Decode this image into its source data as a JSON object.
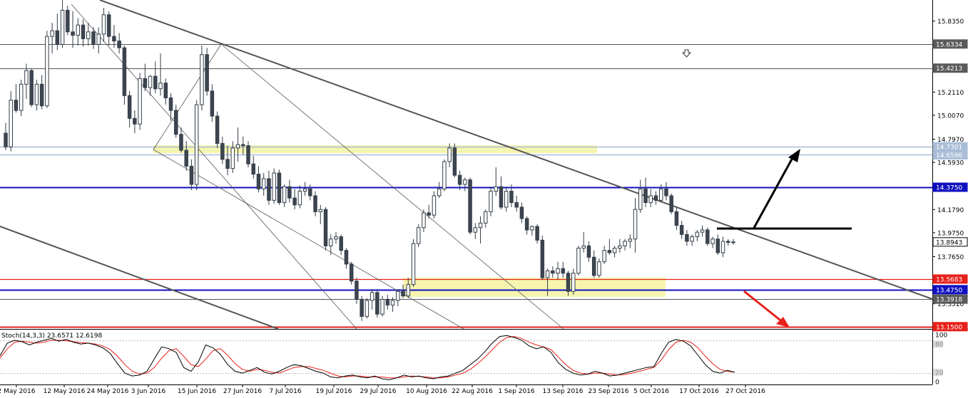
{
  "chart_data": {
    "type": "candlestick",
    "title": "",
    "main_axis": {
      "ticks": [
        "15.8350",
        "15.2110",
        "15.0070",
        "14.7970",
        "14.5930",
        "14.1790",
        "13.9750",
        "13.7650",
        "13.3510"
      ],
      "range": [
        13.13,
        16.02
      ]
    },
    "price_labels": [
      {
        "text": "15.6334",
        "value": 15.6334,
        "style": "gray"
      },
      {
        "text": "15.4213",
        "value": 15.4213,
        "style": "gray"
      },
      {
        "text": "14.7301",
        "value": 14.7301,
        "style": "lightblue"
      },
      {
        "text": "14.6596",
        "value": 14.6596,
        "style": "lightblue"
      },
      {
        "text": "14.3750",
        "value": 14.375,
        "style": "blue"
      },
      {
        "text": "13.8943",
        "value": 13.8943,
        "style": "current"
      },
      {
        "text": "13.5683",
        "value": 13.5683,
        "style": "red"
      },
      {
        "text": "13.4750",
        "value": 13.475,
        "style": "blue"
      },
      {
        "text": "13.3918",
        "value": 13.3918,
        "style": "gray"
      },
      {
        "text": "13.1500",
        "value": 13.15,
        "style": "red"
      }
    ],
    "x_axis": {
      "labels": [
        "2 May 2016",
        "12 May 2016",
        "24 May 2016",
        "3 Jun 2016",
        "15 Jun 2016",
        "27 Jun 2016",
        "7 Jul 2016",
        "19 Jul 2016",
        "29 Jul 2016",
        "10 Aug 2016",
        "22 Aug 2016",
        "1 Sep 2016",
        "13 Sep 2016",
        "23 Sep 2016",
        "5 Oct 2016",
        "17 Oct 2016",
        "27 Oct 2016"
      ]
    },
    "candles": [
      [
        14.85,
        14.94,
        14.7,
        14.73
      ],
      [
        14.73,
        15.22,
        14.69,
        15.14
      ],
      [
        15.14,
        15.28,
        15.03,
        15.05
      ],
      [
        15.05,
        15.32,
        15.0,
        15.28
      ],
      [
        15.28,
        15.46,
        15.15,
        15.4
      ],
      [
        15.4,
        15.42,
        15.08,
        15.1
      ],
      [
        15.1,
        15.32,
        15.05,
        15.28
      ],
      [
        15.28,
        15.36,
        15.06,
        15.09
      ],
      [
        15.09,
        15.75,
        15.07,
        15.7
      ],
      [
        15.7,
        15.82,
        15.55,
        15.75
      ],
      [
        15.75,
        15.9,
        15.58,
        15.63
      ],
      [
        15.63,
        16.02,
        15.6,
        15.93
      ],
      [
        15.93,
        15.97,
        15.71,
        15.74
      ],
      [
        15.74,
        15.92,
        15.6,
        15.71
      ],
      [
        15.71,
        15.86,
        15.62,
        15.8
      ],
      [
        15.8,
        15.85,
        15.61,
        15.68
      ],
      [
        15.68,
        15.82,
        15.62,
        15.74
      ],
      [
        15.74,
        15.78,
        15.59,
        15.63
      ],
      [
        15.63,
        15.78,
        15.55,
        15.72
      ],
      [
        15.72,
        15.95,
        15.65,
        15.89
      ],
      [
        15.89,
        15.92,
        15.62,
        15.7
      ],
      [
        15.7,
        15.8,
        15.6,
        15.66
      ],
      [
        15.66,
        15.73,
        15.55,
        15.6
      ],
      [
        15.6,
        15.62,
        15.1,
        15.18
      ],
      [
        15.18,
        15.22,
        14.9,
        14.98
      ],
      [
        14.98,
        15.05,
        14.85,
        14.93
      ],
      [
        14.93,
        15.38,
        14.88,
        15.33
      ],
      [
        15.33,
        15.46,
        15.22,
        15.25
      ],
      [
        15.25,
        15.36,
        15.18,
        15.35
      ],
      [
        15.35,
        15.48,
        15.2,
        15.24
      ],
      [
        15.24,
        15.55,
        15.18,
        15.29
      ],
      [
        15.29,
        15.33,
        15.1,
        15.16
      ],
      [
        15.16,
        15.2,
        14.96,
        15.05
      ],
      [
        15.05,
        15.1,
        14.81,
        14.84
      ],
      [
        14.84,
        14.9,
        14.68,
        14.7
      ],
      [
        14.7,
        14.78,
        14.52,
        14.56
      ],
      [
        14.56,
        14.62,
        14.35,
        14.4
      ],
      [
        14.4,
        15.14,
        14.35,
        15.1
      ],
      [
        15.1,
        15.62,
        15.05,
        15.54
      ],
      [
        15.54,
        15.6,
        15.18,
        15.22
      ],
      [
        15.22,
        15.28,
        14.95,
        15.0
      ],
      [
        15.0,
        15.04,
        14.72,
        14.76
      ],
      [
        14.76,
        14.82,
        14.58,
        14.62
      ],
      [
        14.62,
        14.74,
        14.48,
        14.54
      ],
      [
        14.54,
        14.78,
        14.5,
        14.72
      ],
      [
        14.72,
        14.9,
        14.6,
        14.75
      ],
      [
        14.75,
        14.82,
        14.66,
        14.74
      ],
      [
        14.74,
        14.78,
        14.55,
        14.58
      ],
      [
        14.58,
        14.65,
        14.45,
        14.49
      ],
      [
        14.49,
        14.56,
        14.33,
        14.36
      ],
      [
        14.36,
        14.5,
        14.3,
        14.45
      ],
      [
        14.45,
        14.52,
        14.22,
        14.26
      ],
      [
        14.26,
        14.54,
        14.23,
        14.5
      ],
      [
        14.5,
        14.53,
        14.22,
        14.24
      ],
      [
        14.24,
        14.4,
        14.2,
        14.38
      ],
      [
        14.38,
        14.44,
        14.24,
        14.28
      ],
      [
        14.28,
        14.36,
        14.18,
        14.22
      ],
      [
        14.22,
        14.39,
        14.19,
        14.34
      ],
      [
        14.34,
        14.42,
        14.3,
        14.36
      ],
      [
        14.36,
        14.4,
        14.26,
        14.3
      ],
      [
        14.3,
        14.34,
        14.12,
        14.16
      ],
      [
        14.16,
        14.22,
        14.05,
        14.18
      ],
      [
        14.18,
        14.2,
        13.82,
        13.86
      ],
      [
        13.86,
        13.96,
        13.78,
        13.92
      ],
      [
        13.92,
        13.98,
        13.88,
        13.94
      ],
      [
        13.94,
        13.96,
        13.78,
        13.82
      ],
      [
        13.82,
        13.84,
        13.66,
        13.7
      ],
      [
        13.7,
        13.72,
        13.52,
        13.55
      ],
      [
        13.55,
        13.58,
        13.35,
        13.39
      ],
      [
        13.39,
        13.42,
        13.2,
        13.24
      ],
      [
        13.24,
        13.4,
        13.22,
        13.38
      ],
      [
        13.38,
        13.48,
        13.3,
        13.45
      ],
      [
        13.45,
        13.48,
        13.23,
        13.26
      ],
      [
        13.26,
        13.42,
        13.24,
        13.39
      ],
      [
        13.39,
        13.43,
        13.3,
        13.34
      ],
      [
        13.34,
        13.41,
        13.28,
        13.38
      ],
      [
        13.38,
        13.48,
        13.33,
        13.46
      ],
      [
        13.46,
        13.52,
        13.4,
        13.42
      ],
      [
        13.42,
        13.58,
        13.4,
        13.52
      ],
      [
        13.52,
        13.92,
        13.5,
        13.88
      ],
      [
        13.88,
        14.05,
        13.85,
        14.02
      ],
      [
        14.02,
        14.18,
        13.98,
        14.15
      ],
      [
        14.15,
        14.22,
        14.1,
        14.13
      ],
      [
        14.13,
        14.34,
        14.1,
        14.3
      ],
      [
        14.3,
        14.42,
        14.28,
        14.36
      ],
      [
        14.36,
        14.62,
        14.34,
        14.6
      ],
      [
        14.6,
        14.76,
        14.55,
        14.72
      ],
      [
        14.72,
        14.76,
        14.46,
        14.48
      ],
      [
        14.48,
        14.52,
        14.35,
        14.4
      ],
      [
        14.4,
        14.46,
        14.34,
        14.44
      ],
      [
        14.44,
        14.46,
        13.96,
        13.98
      ],
      [
        13.98,
        14.06,
        13.92,
        14.02
      ],
      [
        14.02,
        14.12,
        13.88,
        14.06
      ],
      [
        14.06,
        14.18,
        14.02,
        14.16
      ],
      [
        14.16,
        14.38,
        14.12,
        14.34
      ],
      [
        14.34,
        14.55,
        14.3,
        14.38
      ],
      [
        14.38,
        14.47,
        14.18,
        14.2
      ],
      [
        14.2,
        14.38,
        14.16,
        14.34
      ],
      [
        14.34,
        14.4,
        14.2,
        14.24
      ],
      [
        14.24,
        14.3,
        14.16,
        14.2
      ],
      [
        14.2,
        14.24,
        14.06,
        14.1
      ],
      [
        14.1,
        14.12,
        13.96,
        14.0
      ],
      [
        14.0,
        14.04,
        13.95,
        14.03
      ],
      [
        14.03,
        14.05,
        13.88,
        13.91
      ],
      [
        13.91,
        13.95,
        13.56,
        13.58
      ],
      [
        13.58,
        13.66,
        13.42,
        13.64
      ],
      [
        13.64,
        13.68,
        13.58,
        13.62
      ],
      [
        13.62,
        13.72,
        13.56,
        13.66
      ],
      [
        13.66,
        13.72,
        13.58,
        13.62
      ],
      [
        13.62,
        13.64,
        13.42,
        13.46
      ],
      [
        13.46,
        13.66,
        13.43,
        13.62
      ],
      [
        13.62,
        13.86,
        13.6,
        13.84
      ],
      [
        13.84,
        13.98,
        13.8,
        13.86
      ],
      [
        13.86,
        13.9,
        13.72,
        13.76
      ],
      [
        13.76,
        13.82,
        13.58,
        13.6
      ],
      [
        13.6,
        13.75,
        13.58,
        13.72
      ],
      [
        13.72,
        13.86,
        13.7,
        13.82
      ],
      [
        13.82,
        13.92,
        13.78,
        13.8
      ],
      [
        13.8,
        13.86,
        13.76,
        13.84
      ],
      [
        13.84,
        13.92,
        13.8,
        13.86
      ],
      [
        13.86,
        13.92,
        13.82,
        13.9
      ],
      [
        13.9,
        13.96,
        13.84,
        13.92
      ],
      [
        13.92,
        14.28,
        13.8,
        14.18
      ],
      [
        14.18,
        14.44,
        14.15,
        14.36
      ],
      [
        14.36,
        14.46,
        14.2,
        14.24
      ],
      [
        14.24,
        14.36,
        14.2,
        14.3
      ],
      [
        14.3,
        14.34,
        14.22,
        14.26
      ],
      [
        14.26,
        14.4,
        14.24,
        14.36
      ],
      [
        14.36,
        14.42,
        14.26,
        14.3
      ],
      [
        14.3,
        14.32,
        14.14,
        14.16
      ],
      [
        14.16,
        14.2,
        14.0,
        14.04
      ],
      [
        14.04,
        14.08,
        13.92,
        13.96
      ],
      [
        13.96,
        14.0,
        13.86,
        13.9
      ],
      [
        13.9,
        13.96,
        13.86,
        13.94
      ],
      [
        13.94,
        14.0,
        13.9,
        13.98
      ],
      [
        13.98,
        14.04,
        13.94,
        14.0
      ],
      [
        14.0,
        14.02,
        13.86,
        13.88
      ],
      [
        13.88,
        13.94,
        13.84,
        13.92
      ],
      [
        13.92,
        13.96,
        13.78,
        13.8
      ],
      [
        13.8,
        13.94,
        13.76,
        13.9
      ],
      [
        13.9,
        13.92,
        13.86,
        13.89
      ],
      [
        13.89,
        13.92,
        13.87,
        13.8943
      ]
    ],
    "stochastic": {
      "label": "Stoch(14,3,3) 23.6571 12.6198",
      "ticks": [
        "100",
        "80",
        "20",
        "0"
      ],
      "range": [
        0,
        100
      ],
      "k": [
        55,
        82,
        88,
        85,
        78,
        84,
        88,
        92,
        86,
        90,
        84,
        80,
        82,
        78,
        72,
        60,
        38,
        18,
        12,
        14,
        22,
        48,
        74,
        70,
        62,
        30,
        22,
        42,
        78,
        72,
        58,
        36,
        22,
        18,
        24,
        30,
        20,
        16,
        22,
        30,
        36,
        34,
        28,
        22,
        18,
        10,
        8,
        12,
        14,
        10,
        8,
        12,
        6,
        4,
        8,
        14,
        10,
        12,
        8,
        6,
        10,
        12,
        18,
        24,
        36,
        48,
        64,
        82,
        96,
        98,
        94,
        88,
        76,
        70,
        74,
        62,
        40,
        26,
        18,
        14,
        16,
        22,
        18,
        12,
        14,
        18,
        22,
        26,
        30,
        32,
        60,
        84,
        90,
        86,
        76,
        56,
        36,
        22,
        18,
        24,
        20
      ],
      "d": [
        50,
        70,
        84,
        86,
        84,
        82,
        84,
        88,
        88,
        87,
        85,
        83,
        82,
        80,
        76,
        68,
        54,
        36,
        22,
        16,
        18,
        30,
        50,
        66,
        70,
        54,
        36,
        32,
        48,
        66,
        70,
        56,
        38,
        26,
        22,
        26,
        24,
        20,
        18,
        24,
        30,
        32,
        32,
        28,
        24,
        18,
        12,
        10,
        12,
        12,
        10,
        10,
        10,
        8,
        8,
        10,
        12,
        11,
        10,
        8,
        8,
        10,
        14,
        18,
        26,
        38,
        52,
        68,
        84,
        94,
        96,
        92,
        84,
        78,
        74,
        68,
        52,
        36,
        24,
        18,
        16,
        18,
        18,
        16,
        14,
        15,
        18,
        22,
        26,
        30,
        46,
        68,
        84,
        88,
        84,
        72,
        54,
        38,
        26,
        22,
        20
      ]
    }
  }
}
